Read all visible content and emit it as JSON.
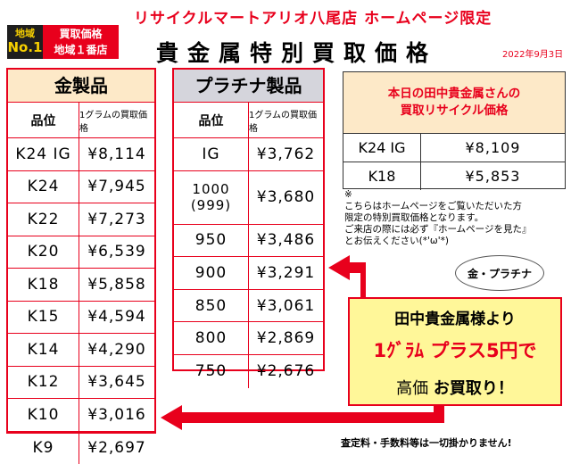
{
  "header": {
    "store_title": "リサイクルマートアリオ八尾店 ホームページ限定",
    "main_title": "貴金属特別買取価格",
    "date": "2022年9月3日",
    "badge": {
      "region": "地域",
      "no": "No.1",
      "line1": "買取価格",
      "line2": "地域１番店"
    }
  },
  "gold": {
    "title": "金製品",
    "col_grade": "品位",
    "col_price": "1グラムの買取価格",
    "rows": [
      {
        "grade": "K24 IG",
        "price": "¥8,114"
      },
      {
        "grade": "K24",
        "price": "¥7,945"
      },
      {
        "grade": "K22",
        "price": "¥7,273"
      },
      {
        "grade": "K20",
        "price": "¥6,539"
      },
      {
        "grade": "K18",
        "price": "¥5,858"
      },
      {
        "grade": "K15",
        "price": "¥4,594"
      },
      {
        "grade": "K14",
        "price": "¥4,290"
      },
      {
        "grade": "K12",
        "price": "¥3,645"
      },
      {
        "grade": "K10",
        "price": "¥3,016"
      },
      {
        "grade": "K9",
        "price": "¥2,697"
      }
    ]
  },
  "platinum": {
    "title": "プラチナ製品",
    "col_grade": "品位",
    "col_price": "1グラムの買取価格",
    "rows": [
      {
        "grade": "IG",
        "price": "¥3,762"
      },
      {
        "grade_line1": "1000",
        "grade_line2": "(999)",
        "price": "¥3,680"
      },
      {
        "grade": "950",
        "price": "¥3,486"
      },
      {
        "grade": "900",
        "price": "¥3,291"
      },
      {
        "grade": "850",
        "price": "¥3,061"
      },
      {
        "grade": "800",
        "price": "¥2,869"
      },
      {
        "grade": "750",
        "price": "¥2,676"
      }
    ]
  },
  "tanaka": {
    "title_line1": "本日の田中貴金属さんの",
    "title_line2": "買取リサイクル価格",
    "rows": [
      {
        "grade": "K24 IG",
        "price": "¥8,109"
      },
      {
        "grade": "K18",
        "price": "¥5,853"
      }
    ]
  },
  "note": {
    "mark": "※",
    "line1": "こちらはホームページをご覧いただいた方",
    "line2": "限定の特別買取価格となります。",
    "line3": "ご来店の際には必ず『ホームページを見た』",
    "line4": "とお伝えください(*'ω'*)"
  },
  "promo": {
    "bubble": "金・プラチナ",
    "line1": "田中貴金属様より",
    "line2": "1ｸﾞﾗﾑ プラス5円で",
    "line3_a": "高価",
    "line3_b": "お買取り！"
  },
  "footer": "査定料・手数料等は一切掛かりません!",
  "colors": {
    "accent_red": "#e8001c",
    "gold_header_bg": "#fde9c8",
    "platinum_header_bg": "#d5d5dc",
    "promo_bg": "#fff799"
  }
}
